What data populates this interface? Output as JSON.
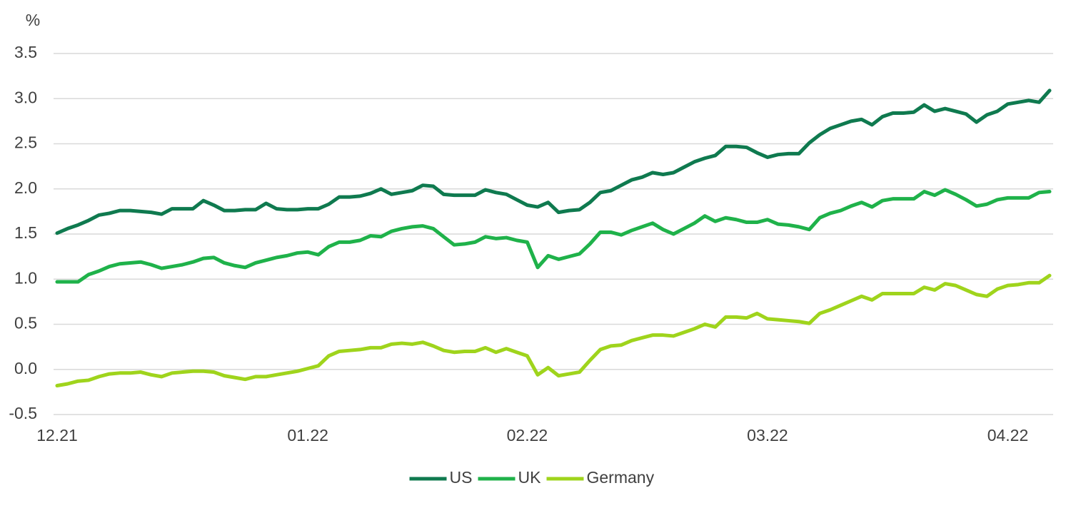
{
  "chart_data": {
    "type": "line",
    "y_label": "%",
    "categories": [
      "12.21",
      null,
      null,
      null,
      null,
      null,
      null,
      null,
      null,
      null,
      null,
      null,
      null,
      null,
      null,
      null,
      null,
      null,
      null,
      null,
      null,
      null,
      null,
      null,
      "01.22",
      null,
      null,
      null,
      null,
      null,
      null,
      null,
      null,
      null,
      null,
      null,
      null,
      null,
      null,
      null,
      null,
      null,
      null,
      null,
      null,
      "02.22",
      null,
      null,
      null,
      null,
      null,
      null,
      null,
      null,
      null,
      null,
      null,
      null,
      null,
      null,
      null,
      null,
      null,
      null,
      null,
      null,
      null,
      null,
      "03.22",
      null,
      null,
      null,
      null,
      null,
      null,
      null,
      null,
      null,
      null,
      null,
      null,
      null,
      null,
      null,
      null,
      null,
      null,
      null,
      null,
      null,
      null,
      "04.22",
      null,
      null,
      null,
      null
    ],
    "series": [
      {
        "name": "US",
        "color": "#0f7a4f",
        "values": [
          1.51,
          1.56,
          1.6,
          1.65,
          1.71,
          1.73,
          1.76,
          1.76,
          1.75,
          1.74,
          1.72,
          1.78,
          1.78,
          1.78,
          1.87,
          1.82,
          1.76,
          1.76,
          1.77,
          1.77,
          1.84,
          1.78,
          1.77,
          1.77,
          1.78,
          1.78,
          1.83,
          1.91,
          1.91,
          1.92,
          1.95,
          2.0,
          1.94,
          1.96,
          1.98,
          2.04,
          2.03,
          1.94,
          1.93,
          1.93,
          1.93,
          1.99,
          1.96,
          1.94,
          1.88,
          1.82,
          1.8,
          1.85,
          1.74,
          1.76,
          1.77,
          1.85,
          1.96,
          1.98,
          2.04,
          2.1,
          2.13,
          2.18,
          2.16,
          2.18,
          2.24,
          2.3,
          2.34,
          2.37,
          2.47,
          2.47,
          2.46,
          2.4,
          2.35,
          2.38,
          2.39,
          2.39,
          2.51,
          2.6,
          2.67,
          2.71,
          2.75,
          2.77,
          2.71,
          2.8,
          2.84,
          2.84,
          2.85,
          2.93,
          2.86,
          2.89,
          2.86,
          2.83,
          2.74,
          2.82,
          2.86,
          2.94,
          2.96,
          2.98,
          2.96,
          3.09
        ]
      },
      {
        "name": "UK",
        "color": "#1fb24a",
        "values": [
          0.97,
          0.97,
          0.97,
          1.05,
          1.09,
          1.14,
          1.17,
          1.18,
          1.19,
          1.16,
          1.12,
          1.14,
          1.16,
          1.19,
          1.23,
          1.24,
          1.18,
          1.15,
          1.13,
          1.18,
          1.21,
          1.24,
          1.26,
          1.29,
          1.3,
          1.27,
          1.36,
          1.41,
          1.41,
          1.43,
          1.48,
          1.47,
          1.53,
          1.56,
          1.58,
          1.59,
          1.56,
          1.47,
          1.38,
          1.39,
          1.41,
          1.47,
          1.45,
          1.46,
          1.43,
          1.41,
          1.13,
          1.26,
          1.22,
          1.25,
          1.28,
          1.39,
          1.52,
          1.52,
          1.49,
          1.54,
          1.58,
          1.62,
          1.55,
          1.5,
          1.56,
          1.62,
          1.7,
          1.64,
          1.68,
          1.66,
          1.63,
          1.63,
          1.66,
          1.61,
          1.6,
          1.58,
          1.55,
          1.68,
          1.73,
          1.76,
          1.81,
          1.85,
          1.8,
          1.87,
          1.89,
          1.89,
          1.89,
          1.97,
          1.93,
          1.99,
          1.94,
          1.88,
          1.81,
          1.83,
          1.88,
          1.9,
          1.9,
          1.9,
          1.96,
          1.97
        ]
      },
      {
        "name": "Germany",
        "color": "#9fd41c",
        "values": [
          -0.18,
          -0.16,
          -0.13,
          -0.12,
          -0.08,
          -0.05,
          -0.04,
          -0.04,
          -0.03,
          -0.06,
          -0.08,
          -0.04,
          -0.03,
          -0.02,
          -0.02,
          -0.03,
          -0.07,
          -0.09,
          -0.11,
          -0.08,
          -0.08,
          -0.06,
          -0.04,
          -0.02,
          0.01,
          0.04,
          0.15,
          0.2,
          0.21,
          0.22,
          0.24,
          0.24,
          0.28,
          0.29,
          0.28,
          0.3,
          0.26,
          0.21,
          0.19,
          0.2,
          0.2,
          0.24,
          0.19,
          0.23,
          0.19,
          0.15,
          -0.06,
          0.02,
          -0.07,
          -0.05,
          -0.03,
          0.1,
          0.22,
          0.26,
          0.27,
          0.32,
          0.35,
          0.38,
          0.38,
          0.37,
          0.41,
          0.45,
          0.5,
          0.47,
          0.58,
          0.58,
          0.57,
          0.62,
          0.56,
          0.55,
          0.54,
          0.53,
          0.51,
          0.62,
          0.66,
          0.71,
          0.76,
          0.81,
          0.77,
          0.84,
          0.84,
          0.84,
          0.84,
          0.91,
          0.88,
          0.95,
          0.93,
          0.88,
          0.83,
          0.81,
          0.89,
          0.93,
          0.94,
          0.96,
          0.96,
          1.04
        ]
      }
    ],
    "ylim": [
      -0.5,
      3.5
    ],
    "yticks": [
      -0.5,
      {
        "value": 0,
        "label": "0.0"
      },
      0.5,
      {
        "value": 1,
        "label": "1.0"
      },
      1.5,
      {
        "value": 2,
        "label": "2.0"
      },
      2.5,
      {
        "value": 3,
        "label": "3.0"
      },
      3.5
    ],
    "grid": true,
    "legend": "bottom"
  }
}
